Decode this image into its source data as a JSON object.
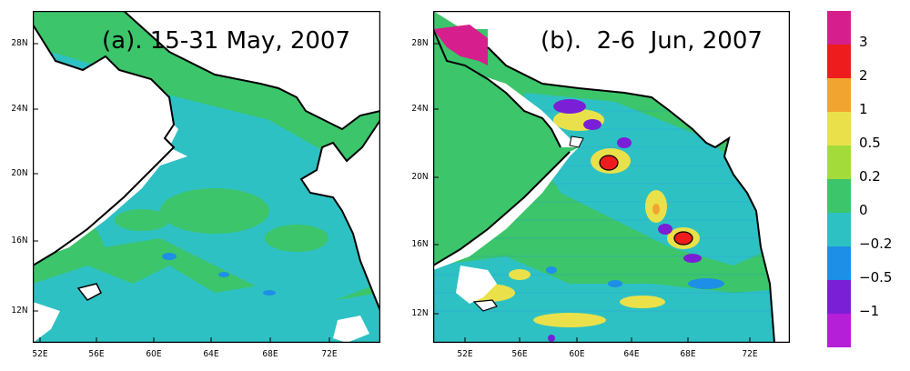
{
  "panels": [
    {
      "title": "(a). 15-31 May, 2007",
      "lat_labels": [
        "28N",
        "24N",
        "20N",
        "16N",
        "12N"
      ],
      "lon_labels": [
        "52E",
        "56E",
        "60E",
        "64E",
        "68E",
        "72E"
      ]
    },
    {
      "title": "(b).  2-6  Jun, 2007",
      "lat_labels": [
        "28N",
        "24N",
        "20N",
        "16N",
        "12N"
      ],
      "lon_labels": [
        "52E",
        "56E",
        "60E",
        "64E",
        "68E",
        "72E"
      ]
    }
  ],
  "colorbar": {
    "labels": [
      "3",
      "2",
      "1",
      "0.5",
      "0.2",
      "0",
      "−0.2",
      "−0.5",
      "−1"
    ],
    "colors": [
      "#d61f8c",
      "#ee1c1c",
      "#f2a431",
      "#eae14a",
      "#a3dc3a",
      "#3cc56a",
      "#2ec1c4",
      "#1e8fe6",
      "#7b1fd6",
      "#b51fd8"
    ]
  }
}
